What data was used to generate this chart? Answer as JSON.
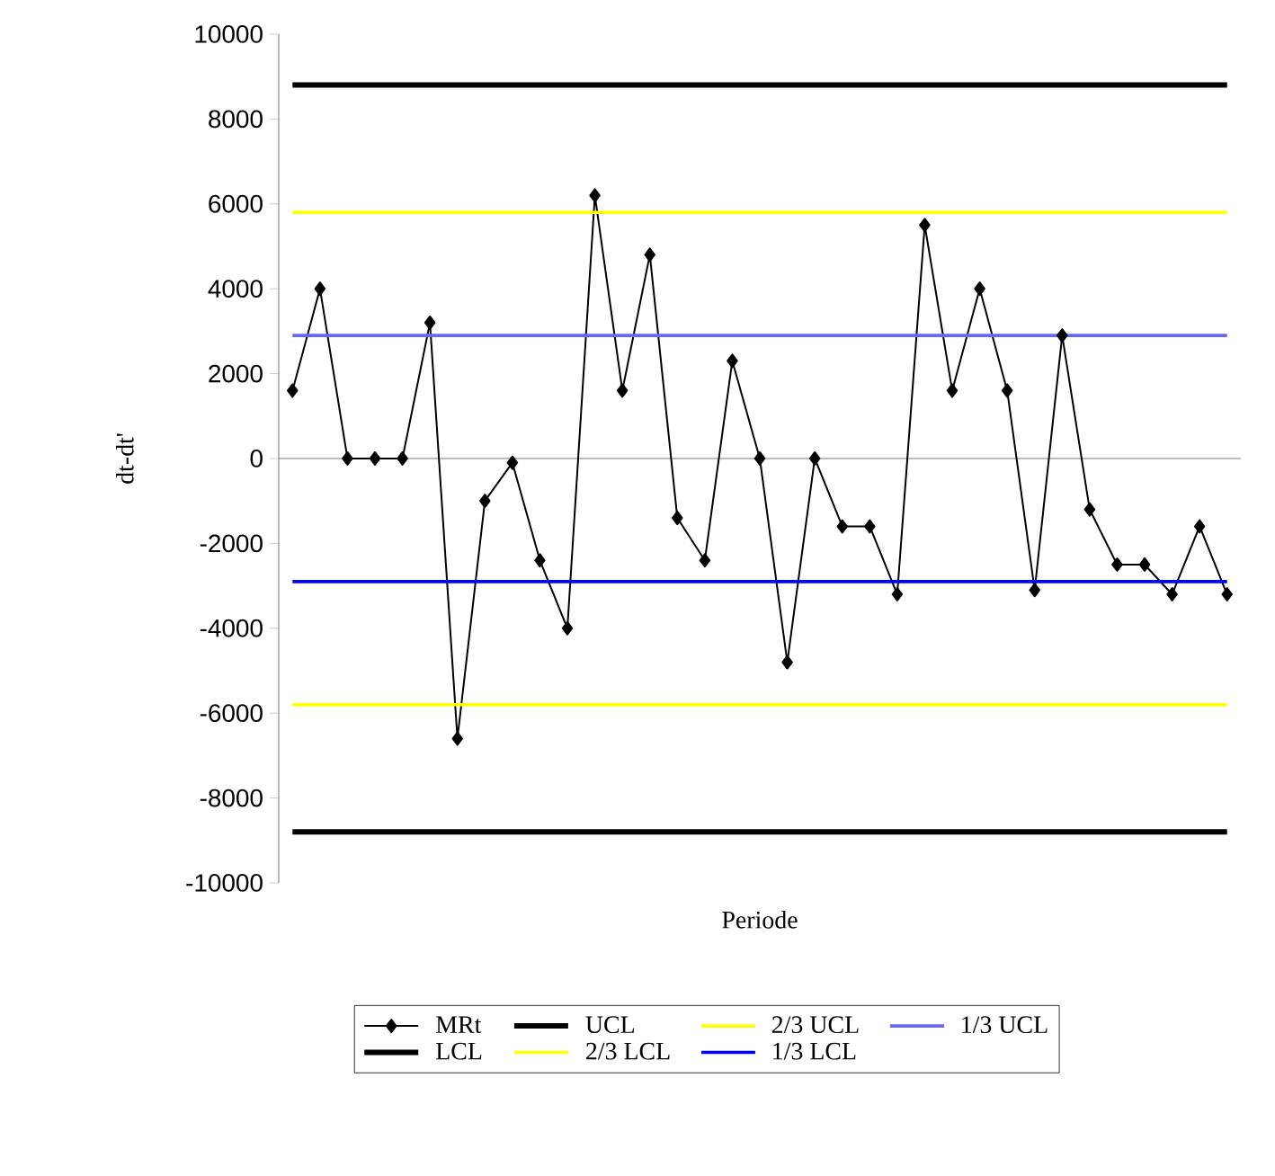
{
  "chart_data": {
    "type": "line",
    "xlabel": "Periode",
    "ylabel": "dt-dt'",
    "categories": [
      null,
      null,
      null,
      null,
      null,
      null,
      null,
      null,
      null,
      null,
      null,
      null,
      null,
      null,
      null,
      null,
      null,
      null,
      null,
      null,
      null,
      null,
      null,
      null,
      null,
      null,
      null,
      null,
      null,
      null,
      null,
      null,
      null,
      null,
      null
    ],
    "series": [
      {
        "name": "MRt",
        "color": "#000000",
        "marker": "diamond",
        "values": [
          1600,
          4000,
          0,
          0,
          0,
          3200,
          -6600,
          -1000,
          -100,
          -2400,
          -4000,
          6200,
          1600,
          4800,
          -1400,
          -2400,
          2300,
          0,
          -4800,
          0,
          -1600,
          -1600,
          -3200,
          5500,
          1600,
          4000,
          1600,
          -3100,
          2900,
          -1200,
          -2500,
          -2500,
          -3200,
          -1600,
          -3200
        ]
      },
      {
        "name": "UCL",
        "color": "#000000",
        "marker": "none",
        "values": [
          8800,
          8800,
          8800,
          8800,
          8800,
          8800,
          8800,
          8800,
          8800,
          8800,
          8800,
          8800,
          8800,
          8800,
          8800,
          8800,
          8800,
          8800,
          8800,
          8800,
          8800,
          8800,
          8800,
          8800,
          8800,
          8800,
          8800,
          8800,
          8800,
          8800,
          8800,
          8800,
          8800,
          8800,
          8800
        ]
      },
      {
        "name": "2/3 UCL",
        "color": "#ffff00",
        "marker": "none",
        "values": [
          5800,
          5800,
          5800,
          5800,
          5800,
          5800,
          5800,
          5800,
          5800,
          5800,
          5800,
          5800,
          5800,
          5800,
          5800,
          5800,
          5800,
          5800,
          5800,
          5800,
          5800,
          5800,
          5800,
          5800,
          5800,
          5800,
          5800,
          5800,
          5800,
          5800,
          5800,
          5800,
          5800,
          5800,
          5800
        ]
      },
      {
        "name": "1/3 UCL",
        "color": "#6666ff",
        "marker": "none",
        "values": [
          2900,
          2900,
          2900,
          2900,
          2900,
          2900,
          2900,
          2900,
          2900,
          2900,
          2900,
          2900,
          2900,
          2900,
          2900,
          2900,
          2900,
          2900,
          2900,
          2900,
          2900,
          2900,
          2900,
          2900,
          2900,
          2900,
          2900,
          2900,
          2900,
          2900,
          2900,
          2900,
          2900,
          2900,
          2900
        ]
      },
      {
        "name": "LCL",
        "color": "#000000",
        "marker": "none",
        "values": [
          -8800,
          -8800,
          -8800,
          -8800,
          -8800,
          -8800,
          -8800,
          -8800,
          -8800,
          -8800,
          -8800,
          -8800,
          -8800,
          -8800,
          -8800,
          -8800,
          -8800,
          -8800,
          -8800,
          -8800,
          -8800,
          -8800,
          -8800,
          -8800,
          -8800,
          -8800,
          -8800,
          -8800,
          -8800,
          -8800,
          -8800,
          -8800,
          -8800,
          -8800,
          -8800
        ]
      },
      {
        "name": "2/3 LCL",
        "color": "#ffff00",
        "marker": "none",
        "values": [
          -5800,
          -5800,
          -5800,
          -5800,
          -5800,
          -5800,
          -5800,
          -5800,
          -5800,
          -5800,
          -5800,
          -5800,
          -5800,
          -5800,
          -5800,
          -5800,
          -5800,
          -5800,
          -5800,
          -5800,
          -5800,
          -5800,
          -5800,
          -5800,
          -5800,
          -5800,
          -5800,
          -5800,
          -5800,
          -5800,
          -5800,
          -5800,
          -5800,
          -5800,
          -5800
        ]
      },
      {
        "name": "1/3 LCL",
        "color": "#0000ff",
        "marker": "none",
        "values": [
          -2900,
          -2900,
          -2900,
          -2900,
          -2900,
          -2900,
          -2900,
          -2900,
          -2900,
          -2900,
          -2900,
          -2900,
          -2900,
          -2900,
          -2900,
          -2900,
          -2900,
          -2900,
          -2900,
          -2900,
          -2900,
          -2900,
          -2900,
          -2900,
          -2900,
          -2900,
          -2900,
          -2900,
          -2900,
          -2900,
          -2900,
          -2900,
          -2900,
          -2900,
          -2900
        ]
      }
    ],
    "ylim": [
      -10000,
      10000
    ],
    "yticks": [
      -10000,
      -8000,
      -6000,
      -4000,
      -2000,
      0,
      2000,
      4000,
      6000,
      8000,
      10000
    ],
    "tick_labels": "y",
    "legend": "bottom"
  }
}
